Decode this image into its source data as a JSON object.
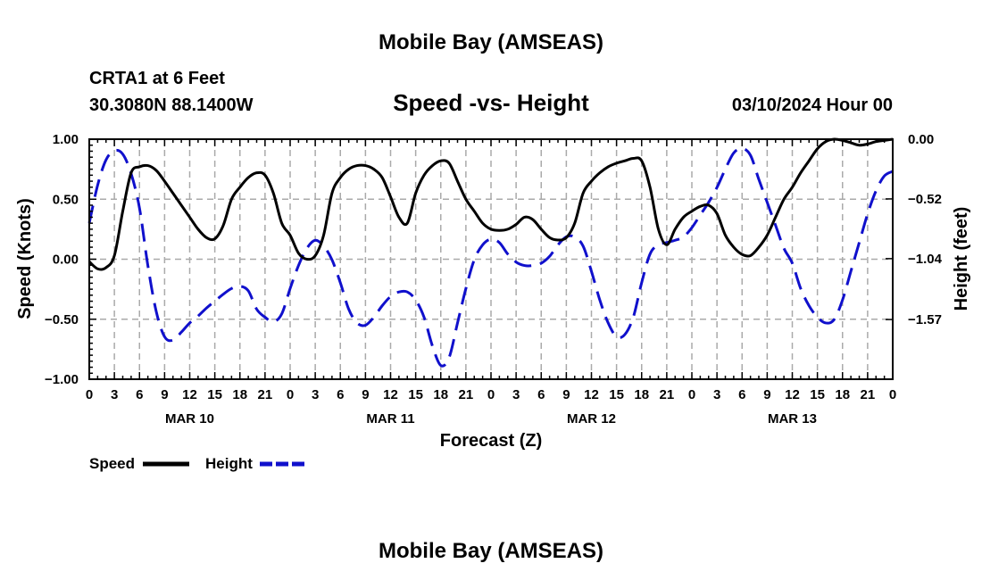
{
  "page": {
    "top_title": "Mobile Bay (AMSEAS)",
    "bottom_title": "Mobile Bay (AMSEAS)"
  },
  "chart_data": {
    "type": "line",
    "title": "Speed -vs- Height",
    "station": "CRTA1 at 6 Feet",
    "coords": "30.3080N  88.1400W",
    "date": "03/10/2024 Hour 00",
    "xlabel": "Forecast (Z)",
    "ylabel_left": "Speed (Knots)",
    "ylabel_right": "Height (feet)",
    "x_range_hours": [
      0,
      96
    ],
    "x_ticks_hours": [
      0,
      3,
      6,
      9,
      12,
      15,
      18,
      21,
      24,
      27,
      30,
      33,
      36,
      39,
      42,
      45,
      48,
      51,
      54,
      57,
      60,
      63,
      66,
      69,
      72,
      75,
      78,
      81,
      84,
      87,
      90,
      93,
      96
    ],
    "x_tick_labels": [
      "0",
      "3",
      "6",
      "9",
      "12",
      "15",
      "18",
      "21",
      "0",
      "3",
      "6",
      "9",
      "12",
      "15",
      "18",
      "21",
      "0",
      "3",
      "6",
      "9",
      "12",
      "15",
      "18",
      "21",
      "0",
      "3",
      "6",
      "9",
      "12",
      "15",
      "18",
      "21",
      "0"
    ],
    "day_labels": [
      {
        "label": "MAR 10",
        "hour": 12
      },
      {
        "label": "MAR 11",
        "hour": 36
      },
      {
        "label": "MAR 12",
        "hour": 60
      },
      {
        "label": "MAR 13",
        "hour": 84
      }
    ],
    "y_left": {
      "range": [
        -1.0,
        1.0
      ],
      "ticks": [
        -1.0,
        -0.5,
        0.0,
        0.5,
        1.0
      ],
      "tick_labels": [
        "−1.00",
        "−0.50",
        "0.00",
        "0.50",
        "1.00"
      ]
    },
    "y_right": {
      "range": [
        -2.09,
        0.0
      ],
      "ticks": [
        0.0,
        -0.52,
        -1.04,
        -1.57
      ],
      "tick_labels": [
        "0.00",
        "−0.52",
        "−1.04",
        "−1.57"
      ]
    },
    "grid": true,
    "series": [
      {
        "name": "Speed",
        "color": "#000000",
        "style": "solid",
        "axis": "left",
        "points": [
          [
            0,
            -0.02
          ],
          [
            1,
            -0.08
          ],
          [
            2,
            -0.07
          ],
          [
            3,
            0.03
          ],
          [
            4,
            0.4
          ],
          [
            5,
            0.72
          ],
          [
            6,
            0.77
          ],
          [
            7,
            0.78
          ],
          [
            8,
            0.74
          ],
          [
            9,
            0.65
          ],
          [
            10,
            0.55
          ],
          [
            11,
            0.45
          ],
          [
            12,
            0.35
          ],
          [
            13,
            0.25
          ],
          [
            14,
            0.18
          ],
          [
            15,
            0.17
          ],
          [
            16,
            0.28
          ],
          [
            17,
            0.5
          ],
          [
            18,
            0.6
          ],
          [
            19,
            0.68
          ],
          [
            20,
            0.72
          ],
          [
            21,
            0.7
          ],
          [
            22,
            0.55
          ],
          [
            23,
            0.3
          ],
          [
            24,
            0.2
          ],
          [
            25,
            0.05
          ],
          [
            26,
            0.0
          ],
          [
            27,
            0.03
          ],
          [
            28,
            0.2
          ],
          [
            29,
            0.55
          ],
          [
            30,
            0.68
          ],
          [
            31,
            0.75
          ],
          [
            32,
            0.78
          ],
          [
            33,
            0.78
          ],
          [
            34,
            0.75
          ],
          [
            35,
            0.68
          ],
          [
            36,
            0.52
          ],
          [
            37,
            0.35
          ],
          [
            38,
            0.3
          ],
          [
            39,
            0.55
          ],
          [
            40,
            0.7
          ],
          [
            41,
            0.78
          ],
          [
            42,
            0.82
          ],
          [
            43,
            0.8
          ],
          [
            44,
            0.65
          ],
          [
            45,
            0.5
          ],
          [
            46,
            0.4
          ],
          [
            47,
            0.3
          ],
          [
            48,
            0.25
          ],
          [
            49,
            0.24
          ],
          [
            50,
            0.25
          ],
          [
            51,
            0.29
          ],
          [
            52,
            0.35
          ],
          [
            53,
            0.33
          ],
          [
            54,
            0.25
          ],
          [
            55,
            0.18
          ],
          [
            56,
            0.16
          ],
          [
            57,
            0.18
          ],
          [
            58,
            0.3
          ],
          [
            59,
            0.55
          ],
          [
            60,
            0.65
          ],
          [
            61,
            0.72
          ],
          [
            62,
            0.77
          ],
          [
            63,
            0.8
          ],
          [
            64,
            0.82
          ],
          [
            65,
            0.84
          ],
          [
            66,
            0.82
          ],
          [
            67,
            0.6
          ],
          [
            68,
            0.25
          ],
          [
            69,
            0.12
          ],
          [
            70,
            0.25
          ],
          [
            71,
            0.35
          ],
          [
            72,
            0.4
          ],
          [
            73,
            0.44
          ],
          [
            74,
            0.45
          ],
          [
            75,
            0.38
          ],
          [
            76,
            0.2
          ],
          [
            77,
            0.1
          ],
          [
            78,
            0.04
          ],
          [
            79,
            0.03
          ],
          [
            80,
            0.1
          ],
          [
            81,
            0.2
          ],
          [
            82,
            0.35
          ],
          [
            83,
            0.5
          ],
          [
            84,
            0.6
          ],
          [
            85,
            0.72
          ],
          [
            86,
            0.82
          ],
          [
            87,
            0.92
          ],
          [
            88,
            0.98
          ],
          [
            89,
            1.0
          ],
          [
            90,
            0.99
          ],
          [
            91,
            0.97
          ],
          [
            92,
            0.95
          ],
          [
            93,
            0.96
          ],
          [
            94,
            0.98
          ],
          [
            95,
            0.99
          ],
          [
            96,
            1.0
          ]
        ]
      },
      {
        "name": "Height",
        "color": "#1010cc",
        "style": "dashed",
        "axis": "right",
        "points": [
          [
            0,
            -0.73
          ],
          [
            1,
            -0.4
          ],
          [
            2,
            -0.18
          ],
          [
            3,
            -0.1
          ],
          [
            4,
            -0.13
          ],
          [
            5,
            -0.3
          ],
          [
            6,
            -0.6
          ],
          [
            7,
            -1.1
          ],
          [
            8,
            -1.5
          ],
          [
            9,
            -1.72
          ],
          [
            10,
            -1.75
          ],
          [
            11,
            -1.68
          ],
          [
            12,
            -1.6
          ],
          [
            13,
            -1.54
          ],
          [
            14,
            -1.47
          ],
          [
            15,
            -1.41
          ],
          [
            16,
            -1.35
          ],
          [
            17,
            -1.3
          ],
          [
            18,
            -1.28
          ],
          [
            19,
            -1.32
          ],
          [
            20,
            -1.48
          ],
          [
            21,
            -1.55
          ],
          [
            22,
            -1.59
          ],
          [
            23,
            -1.52
          ],
          [
            24,
            -1.3
          ],
          [
            25,
            -1.1
          ],
          [
            26,
            -0.95
          ],
          [
            27,
            -0.88
          ],
          [
            28,
            -0.93
          ],
          [
            29,
            -1.05
          ],
          [
            30,
            -1.25
          ],
          [
            31,
            -1.48
          ],
          [
            32,
            -1.6
          ],
          [
            33,
            -1.62
          ],
          [
            34,
            -1.55
          ],
          [
            35,
            -1.45
          ],
          [
            36,
            -1.37
          ],
          [
            37,
            -1.33
          ],
          [
            38,
            -1.33
          ],
          [
            39,
            -1.4
          ],
          [
            40,
            -1.55
          ],
          [
            41,
            -1.8
          ],
          [
            42,
            -1.97
          ],
          [
            43,
            -1.9
          ],
          [
            44,
            -1.6
          ],
          [
            45,
            -1.3
          ],
          [
            46,
            -1.05
          ],
          [
            47,
            -0.92
          ],
          [
            48,
            -0.87
          ],
          [
            49,
            -0.9
          ],
          [
            50,
            -1.0
          ],
          [
            51,
            -1.07
          ],
          [
            52,
            -1.1
          ],
          [
            53,
            -1.1
          ],
          [
            54,
            -1.08
          ],
          [
            55,
            -1.02
          ],
          [
            56,
            -0.92
          ],
          [
            57,
            -0.85
          ],
          [
            58,
            -0.85
          ],
          [
            59,
            -0.93
          ],
          [
            60,
            -1.15
          ],
          [
            61,
            -1.4
          ],
          [
            62,
            -1.6
          ],
          [
            63,
            -1.72
          ],
          [
            64,
            -1.7
          ],
          [
            65,
            -1.55
          ],
          [
            66,
            -1.25
          ],
          [
            67,
            -1.0
          ],
          [
            68,
            -0.92
          ],
          [
            69,
            -0.9
          ],
          [
            70,
            -0.88
          ],
          [
            71,
            -0.85
          ],
          [
            72,
            -0.77
          ],
          [
            73,
            -0.66
          ],
          [
            74,
            -0.55
          ],
          [
            75,
            -0.42
          ],
          [
            76,
            -0.26
          ],
          [
            77,
            -0.12
          ],
          [
            78,
            -0.08
          ],
          [
            79,
            -0.14
          ],
          [
            80,
            -0.35
          ],
          [
            81,
            -0.55
          ],
          [
            82,
            -0.75
          ],
          [
            83,
            -0.95
          ],
          [
            84,
            -1.08
          ],
          [
            85,
            -1.3
          ],
          [
            86,
            -1.45
          ],
          [
            87,
            -1.55
          ],
          [
            88,
            -1.6
          ],
          [
            89,
            -1.57
          ],
          [
            90,
            -1.4
          ],
          [
            91,
            -1.15
          ],
          [
            92,
            -0.9
          ],
          [
            93,
            -0.65
          ],
          [
            94,
            -0.45
          ],
          [
            95,
            -0.32
          ],
          [
            96,
            -0.28
          ]
        ]
      }
    ],
    "legend": [
      {
        "label": "Speed",
        "color": "#000000",
        "style": "solid"
      },
      {
        "label": "Height",
        "color": "#1010cc",
        "style": "dashed"
      }
    ]
  }
}
